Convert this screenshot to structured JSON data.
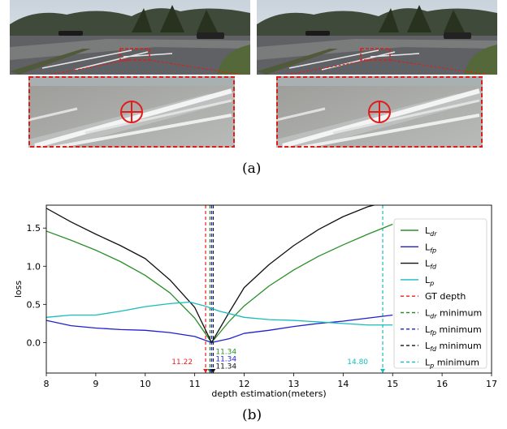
{
  "figure": {
    "panel_a_label": "(a)",
    "panel_b_label": "(b)"
  },
  "chart_data": {
    "type": "line",
    "xlabel": "depth estimation(meters)",
    "ylabel": "loss",
    "xlim": [
      8,
      17
    ],
    "ylim": [
      -0.4,
      1.8
    ],
    "xticks": [
      "8",
      "9",
      "10",
      "11",
      "12",
      "13",
      "14",
      "15",
      "16",
      "17"
    ],
    "yticks": [
      "0.0",
      "0.5",
      "1.0",
      "1.5"
    ],
    "grid": false,
    "legend_position": "right",
    "series": [
      {
        "name": "Ldr",
        "legend": {
          "main": "L",
          "sub": "dr"
        },
        "color": "#2a8f2a",
        "x": [
          8,
          8.5,
          9,
          9.5,
          10,
          10.5,
          11,
          11.34,
          11.7,
          12,
          12.5,
          13,
          13.5,
          14,
          14.5,
          15
        ],
        "y": [
          1.46,
          1.34,
          1.21,
          1.06,
          0.88,
          0.65,
          0.32,
          0.0,
          0.28,
          0.48,
          0.74,
          0.95,
          1.13,
          1.28,
          1.42,
          1.55
        ]
      },
      {
        "name": "Lfp",
        "legend": {
          "main": "L",
          "sub": "fp"
        },
        "color": "#1f1fd0",
        "x": [
          8,
          8.5,
          9,
          9.5,
          10,
          10.5,
          11,
          11.34,
          11.7,
          12,
          12.5,
          13,
          13.5,
          14,
          14.5,
          15
        ],
        "y": [
          0.29,
          0.22,
          0.19,
          0.17,
          0.16,
          0.13,
          0.08,
          0.0,
          0.05,
          0.12,
          0.16,
          0.21,
          0.25,
          0.28,
          0.32,
          0.36
        ]
      },
      {
        "name": "Lfd",
        "legend": {
          "main": "L",
          "sub": "fd"
        },
        "color": "#111111",
        "x": [
          8,
          8.5,
          9,
          9.5,
          10,
          10.5,
          11,
          11.34,
          11.7,
          12,
          12.5,
          13,
          13.5,
          14,
          14.5,
          14.8
        ],
        "y": [
          1.76,
          1.58,
          1.42,
          1.27,
          1.1,
          0.82,
          0.46,
          0.0,
          0.4,
          0.72,
          1.02,
          1.27,
          1.48,
          1.65,
          1.78,
          1.83
        ]
      },
      {
        "name": "Lp",
        "legend": {
          "main": "L",
          "sub": "p"
        },
        "color": "#17bcbc",
        "x": [
          8,
          8.5,
          9,
          9.5,
          10,
          10.5,
          10.9,
          11.2,
          11.5,
          12,
          12.5,
          13,
          13.5,
          14,
          14.5,
          15
        ],
        "y": [
          0.33,
          0.36,
          0.36,
          0.41,
          0.47,
          0.51,
          0.53,
          0.48,
          0.41,
          0.33,
          0.3,
          0.29,
          0.27,
          0.25,
          0.23,
          0.23
        ]
      }
    ],
    "vlines": [
      {
        "name": "GT depth",
        "legend": {
          "main": "GT depth",
          "sub": ""
        },
        "x": 11.22,
        "color": "#ee1c1c",
        "label": "11.22"
      },
      {
        "name": "Ldr minimum",
        "legend": {
          "main": "L",
          "sub": "dr",
          "tail": " minimum"
        },
        "x": 11.34,
        "color": "#2a8f2a",
        "label": "11.34"
      },
      {
        "name": "Lfp minimum",
        "legend": {
          "main": "L",
          "sub": "fp",
          "tail": " minimum"
        },
        "x": 11.34,
        "color": "#1f1fd0",
        "label": "11.34"
      },
      {
        "name": "Lfd minimum",
        "legend": {
          "main": "L",
          "sub": "fd",
          "tail": " minimum"
        },
        "x": 11.34,
        "color": "#111111",
        "label": "11.34"
      },
      {
        "name": "Lp minimum",
        "legend": {
          "main": "L",
          "sub": "p",
          "tail": " minimum"
        },
        "x": 14.8,
        "color": "#17bcbc",
        "label": "14.80"
      }
    ]
  }
}
